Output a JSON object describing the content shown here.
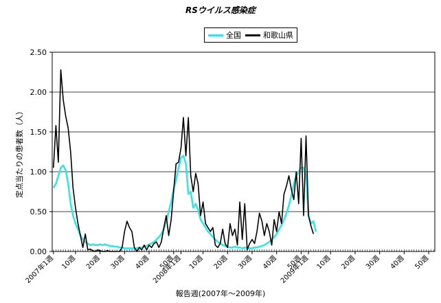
{
  "chart_data": {
    "type": "line",
    "title": "RSウイルス感染症",
    "xlabel": "報告週(2007年～2009年)",
    "ylabel": "定点当たりの患者数（人）",
    "ylim": [
      0,
      2.5
    ],
    "yticks": [
      "0.00",
      "0.50",
      "1.00",
      "1.50",
      "2.00",
      "2.50"
    ],
    "grid": true,
    "legend_position": "top-center",
    "x_tick_labels": [
      "2007年1週",
      "10週",
      "20週",
      "30週",
      "40週",
      "50週",
      "2008年1週",
      "10週",
      "20週",
      "30週",
      "40週",
      "50週",
      "2009年1週",
      "10週",
      "20週",
      "30週",
      "40週",
      "50週"
    ],
    "x_total_weeks": 156,
    "series": [
      {
        "name": "全国",
        "color": "#33e5e5",
        "points": [
          [
            1,
            0.8
          ],
          [
            2,
            0.85
          ],
          [
            3,
            0.95
          ],
          [
            4,
            1.05
          ],
          [
            5,
            1.08
          ],
          [
            6,
            1.02
          ],
          [
            7,
            0.85
          ],
          [
            8,
            0.6
          ],
          [
            9,
            0.45
          ],
          [
            10,
            0.35
          ],
          [
            11,
            0.28
          ],
          [
            12,
            0.2
          ],
          [
            13,
            0.15
          ],
          [
            14,
            0.12
          ],
          [
            15,
            0.1
          ],
          [
            16,
            0.08
          ],
          [
            17,
            0.09
          ],
          [
            18,
            0.08
          ],
          [
            19,
            0.08
          ],
          [
            20,
            0.09
          ],
          [
            21,
            0.08
          ],
          [
            22,
            0.09
          ],
          [
            23,
            0.08
          ],
          [
            24,
            0.07
          ],
          [
            25,
            0.07
          ],
          [
            26,
            0.06
          ],
          [
            27,
            0.06
          ],
          [
            28,
            0.05
          ],
          [
            29,
            0.05
          ],
          [
            30,
            0.04
          ],
          [
            31,
            0.04
          ],
          [
            32,
            0.04
          ],
          [
            33,
            0.04
          ],
          [
            34,
            0.04
          ],
          [
            35,
            0.04
          ],
          [
            36,
            0.05
          ],
          [
            37,
            0.05
          ],
          [
            38,
            0.06
          ],
          [
            39,
            0.07
          ],
          [
            40,
            0.09
          ],
          [
            41,
            0.1
          ],
          [
            42,
            0.12
          ],
          [
            43,
            0.15
          ],
          [
            44,
            0.18
          ],
          [
            45,
            0.22
          ],
          [
            46,
            0.28
          ],
          [
            47,
            0.38
          ],
          [
            48,
            0.5
          ],
          [
            49,
            0.62
          ],
          [
            50,
            0.78
          ],
          [
            51,
            0.9
          ],
          [
            52,
            1.05
          ],
          [
            53,
            1.18
          ],
          [
            54,
            1.2
          ],
          [
            55,
            1.1
          ],
          [
            56,
            0.72
          ],
          [
            57,
            0.75
          ],
          [
            58,
            0.55
          ],
          [
            59,
            0.6
          ],
          [
            60,
            0.52
          ],
          [
            61,
            0.4
          ],
          [
            62,
            0.35
          ],
          [
            63,
            0.3
          ],
          [
            64,
            0.25
          ],
          [
            65,
            0.22
          ],
          [
            66,
            0.18
          ],
          [
            67,
            0.15
          ],
          [
            68,
            0.12
          ],
          [
            69,
            0.1
          ],
          [
            70,
            0.08
          ],
          [
            71,
            0.07
          ],
          [
            72,
            0.06
          ],
          [
            73,
            0.05
          ],
          [
            74,
            0.05
          ],
          [
            75,
            0.06
          ],
          [
            76,
            0.05
          ],
          [
            77,
            0.05
          ],
          [
            78,
            0.04
          ],
          [
            79,
            0.05
          ],
          [
            80,
            0.04
          ],
          [
            81,
            0.04
          ],
          [
            82,
            0.04
          ],
          [
            83,
            0.05
          ],
          [
            84,
            0.05
          ],
          [
            85,
            0.06
          ],
          [
            86,
            0.07
          ],
          [
            87,
            0.08
          ],
          [
            88,
            0.1
          ],
          [
            89,
            0.12
          ],
          [
            90,
            0.15
          ],
          [
            91,
            0.18
          ],
          [
            92,
            0.22
          ],
          [
            93,
            0.28
          ],
          [
            94,
            0.33
          ],
          [
            95,
            0.4
          ],
          [
            96,
            0.48
          ],
          [
            97,
            0.58
          ],
          [
            98,
            0.7
          ],
          [
            99,
            0.85
          ],
          [
            100,
            0.95
          ],
          [
            101,
            1.0
          ],
          [
            102,
            1.05
          ],
          [
            103,
            1.05
          ],
          [
            104,
            0.95
          ],
          [
            105,
            0.45
          ],
          [
            106,
            0.35
          ],
          [
            107,
            0.38
          ],
          [
            108,
            0.25
          ]
        ]
      },
      {
        "name": "和歌山県",
        "color": "#000000",
        "points": [
          [
            1,
            1.05
          ],
          [
            2,
            1.58
          ],
          [
            3,
            1.12
          ],
          [
            4,
            2.28
          ],
          [
            5,
            1.9
          ],
          [
            6,
            1.7
          ],
          [
            7,
            1.55
          ],
          [
            8,
            1.25
          ],
          [
            9,
            0.8
          ],
          [
            10,
            0.55
          ],
          [
            11,
            0.35
          ],
          [
            12,
            0.2
          ],
          [
            13,
            0.05
          ],
          [
            14,
            0.22
          ],
          [
            15,
            0.02
          ],
          [
            16,
            0.03
          ],
          [
            17,
            0.01
          ],
          [
            18,
            0.0
          ],
          [
            19,
            0.02
          ],
          [
            20,
            0.01
          ],
          [
            21,
            0.0
          ],
          [
            22,
            0.0
          ],
          [
            23,
            0.01
          ],
          [
            24,
            0.0
          ],
          [
            25,
            0.0
          ],
          [
            26,
            0.0
          ],
          [
            27,
            0.0
          ],
          [
            28,
            0.0
          ],
          [
            29,
            0.05
          ],
          [
            30,
            0.25
          ],
          [
            31,
            0.38
          ],
          [
            32,
            0.3
          ],
          [
            33,
            0.25
          ],
          [
            34,
            0.05
          ],
          [
            35,
            0.0
          ],
          [
            36,
            0.05
          ],
          [
            37,
            0.02
          ],
          [
            38,
            0.08
          ],
          [
            39,
            0.02
          ],
          [
            40,
            0.08
          ],
          [
            41,
            0.05
          ],
          [
            42,
            0.1
          ],
          [
            43,
            0.12
          ],
          [
            44,
            0.05
          ],
          [
            45,
            0.12
          ],
          [
            46,
            0.3
          ],
          [
            47,
            0.45
          ],
          [
            48,
            0.2
          ],
          [
            49,
            0.4
          ],
          [
            50,
            0.75
          ],
          [
            51,
            1.1
          ],
          [
            52,
            1.12
          ],
          [
            53,
            1.3
          ],
          [
            54,
            1.68
          ],
          [
            55,
            1.2
          ],
          [
            56,
            1.68
          ],
          [
            57,
            0.95
          ],
          [
            58,
            0.75
          ],
          [
            59,
            0.98
          ],
          [
            60,
            0.85
          ],
          [
            61,
            0.45
          ],
          [
            62,
            0.62
          ],
          [
            63,
            0.35
          ],
          [
            64,
            0.3
          ],
          [
            65,
            0.25
          ],
          [
            66,
            0.3
          ],
          [
            67,
            0.08
          ],
          [
            68,
            0.05
          ],
          [
            69,
            0.1
          ],
          [
            70,
            0.28
          ],
          [
            71,
            0.1
          ],
          [
            72,
            0.05
          ],
          [
            73,
            0.35
          ],
          [
            74,
            0.2
          ],
          [
            75,
            0.28
          ],
          [
            76,
            0.08
          ],
          [
            77,
            0.62
          ],
          [
            78,
            0.15
          ],
          [
            79,
            0.6
          ],
          [
            80,
            0.02
          ],
          [
            81,
            0.1
          ],
          [
            82,
            0.15
          ],
          [
            83,
            0.1
          ],
          [
            84,
            0.25
          ],
          [
            85,
            0.48
          ],
          [
            86,
            0.38
          ],
          [
            87,
            0.2
          ],
          [
            88,
            0.35
          ],
          [
            89,
            0.25
          ],
          [
            90,
            0.08
          ],
          [
            91,
            0.4
          ],
          [
            92,
            0.25
          ],
          [
            93,
            0.5
          ],
          [
            94,
            0.35
          ],
          [
            95,
            0.72
          ],
          [
            96,
            0.82
          ],
          [
            97,
            0.95
          ],
          [
            98,
            0.78
          ],
          [
            99,
            0.65
          ],
          [
            100,
            1.0
          ],
          [
            101,
            0.6
          ],
          [
            102,
            1.42
          ],
          [
            103,
            0.45
          ],
          [
            104,
            1.45
          ],
          [
            105,
            0.45
          ],
          [
            106,
            0.32
          ],
          [
            107,
            0.22
          ]
        ]
      }
    ]
  }
}
